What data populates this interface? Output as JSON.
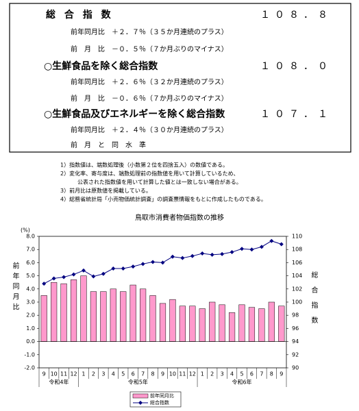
{
  "summary": [
    {
      "label": "総 合 指 数",
      "value": "１０８．８",
      "details": [
        "前年同月比　＋２．７％（３５か月連続のプラス）",
        "前　月　比　－０．５％（７か月ぶりのマイナス）"
      ]
    },
    {
      "label": "○生鮮食品を除く総合指数",
      "value": "１０８．０",
      "details": [
        "前年同月比　＋２．６％（３２か月連続のプラス）",
        "前　月　比　－０．６％（７か月ぶりのマイナス）"
      ]
    },
    {
      "label": "○生鮮食品及びエネルギーを除く総合指数",
      "value": "１０７．１",
      "details": [
        "前年同月比　＋２．４％（３０か月連続のプラス）",
        "前　月　と　同　水　準"
      ]
    }
  ],
  "notes": [
    [
      "1）指数値は、端数処理後（小数第２位を四捨五入）の数値である。"
    ],
    [
      "2）変化率、寄与度は、端数処理前の指数値を用いて計算しているため、",
      "公表された指数値を用いて計算した値とは一致しない場合がある。"
    ],
    [
      "3）前月比は原数値を掲載している。"
    ],
    [
      "4）総務省統計局「小売物価統計調査」の調査票情報をもとに作成したものである。"
    ]
  ],
  "chart_data": {
    "type": "bar-line",
    "title": "鳥取市消費者物価指数の推移",
    "y_unit": "(%)",
    "y_label": "前年同月比",
    "y2_label": "総合指数",
    "categories": [
      "9",
      "10",
      "11",
      "12",
      "1",
      "2",
      "3",
      "4",
      "5",
      "6",
      "7",
      "8",
      "9",
      "10",
      "11",
      "12",
      "1",
      "2",
      "3",
      "4",
      "5",
      "6",
      "7",
      "8",
      "9"
    ],
    "x_groups": [
      "令和4年",
      "令和5年",
      "令和6年"
    ],
    "series": [
      {
        "name": "前年同月比",
        "type": "bar",
        "color": "#ff99cc",
        "values": [
          3.5,
          4.5,
          4.4,
          4.7,
          5.0,
          3.8,
          3.8,
          4.0,
          3.8,
          4.3,
          4.0,
          3.5,
          2.9,
          3.2,
          2.7,
          2.7,
          2.5,
          3.0,
          2.8,
          2.2,
          2.8,
          2.6,
          2.5,
          3.0,
          2.7
        ]
      },
      {
        "name": "総合指数",
        "type": "line",
        "axis": "y2",
        "color": "#000080",
        "values": [
          102.8,
          103.6,
          103.8,
          104.2,
          104.8,
          103.9,
          104.3,
          105.1,
          105.1,
          105.4,
          105.8,
          106.1,
          106.0,
          106.9,
          106.7,
          107.0,
          107.4,
          107.2,
          107.3,
          107.6,
          108.1,
          108.0,
          108.4,
          109.3,
          108.8
        ]
      }
    ],
    "ylim": [
      -2,
      8
    ],
    "yticks": [
      {
        "value": -2,
        "label": "-2.0"
      },
      {
        "value": -1,
        "label": "-1.0"
      },
      {
        "value": 0,
        "label": "0.0"
      },
      {
        "value": 1,
        "label": "1.0"
      },
      {
        "value": 2,
        "label": "2.0"
      },
      {
        "value": 3,
        "label": "3.0"
      },
      {
        "value": 4,
        "label": "4.0"
      },
      {
        "value": 5,
        "label": "5.0"
      },
      {
        "value": 6,
        "label": "6.0"
      },
      {
        "value": 7,
        "label": "7.0"
      },
      {
        "value": 8,
        "label": "8.0"
      }
    ],
    "y2lim": [
      90,
      110
    ],
    "y2ticks": [
      90,
      92,
      94,
      96,
      98,
      100,
      102,
      104,
      106,
      108,
      110
    ]
  }
}
